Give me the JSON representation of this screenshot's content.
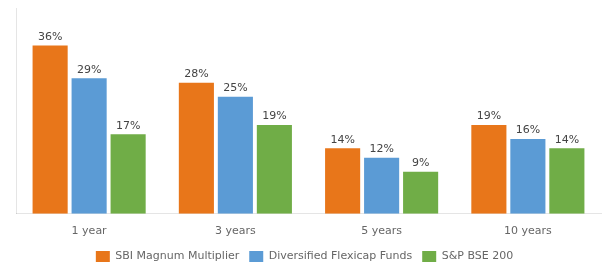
{
  "chart_data": {
    "type": "bar",
    "categories": [
      "1 year",
      "3 years",
      "5 years",
      "10 years"
    ],
    "series": [
      {
        "name": "SBI Magnum Multiplier",
        "color": "#E8761A",
        "values": [
          36,
          28,
          14,
          19
        ],
        "value_labels": [
          "36%",
          "28%",
          "14%",
          "19%"
        ]
      },
      {
        "name": "Diversified Flexicap Funds",
        "color": "#5B9BD5",
        "values": [
          29,
          25,
          12,
          16
        ],
        "value_labels": [
          "29%",
          "25%",
          "12%",
          "16%"
        ]
      },
      {
        "name": "S&P BSE 200",
        "color": "#70AD47",
        "values": [
          17,
          19,
          9,
          14
        ],
        "value_labels": [
          "17%",
          "19%",
          "9%",
          "14%"
        ]
      }
    ],
    "ylim": [
      0,
      44
    ],
    "grid": false,
    "legend": "bottom",
    "data_labels": true,
    "tick_labels": "x"
  }
}
